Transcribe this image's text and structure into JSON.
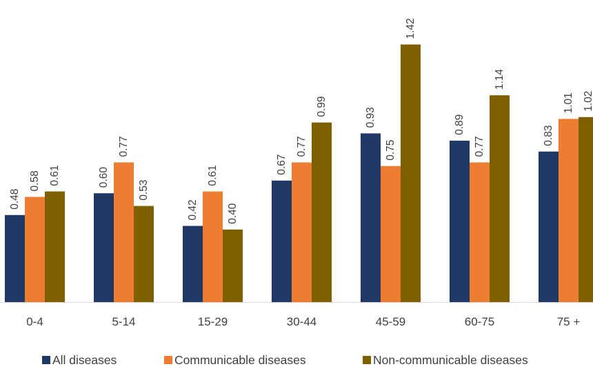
{
  "chart_data": {
    "type": "bar",
    "title": "",
    "xlabel": "",
    "ylabel": "",
    "categories": [
      "0-4",
      "5-14",
      "15-29",
      "30-44",
      "45-59",
      "60-75",
      "75 +"
    ],
    "ylim": [
      0,
      1.5
    ],
    "grid": false,
    "legend_position": "bottom",
    "series": [
      {
        "name": "All diseases",
        "color": "#203864",
        "values": [
          0.48,
          0.6,
          0.42,
          0.67,
          0.93,
          0.89,
          0.83
        ],
        "labels": [
          "0.48",
          "0.60",
          "0.42",
          "0.67",
          "0.93",
          "0.89",
          "0.83"
        ]
      },
      {
        "name": "Communicable diseases",
        "color": "#ED7D31",
        "values": [
          0.58,
          0.77,
          0.61,
          0.77,
          0.75,
          0.77,
          1.01
        ],
        "labels": [
          "0.58",
          "0.77",
          "0.61",
          "0.77",
          "0.75",
          "0.77",
          "1.01"
        ]
      },
      {
        "name": "Non-communicable diseases",
        "color": "#7F6000",
        "values": [
          0.61,
          0.53,
          0.4,
          0.99,
          1.42,
          1.14,
          1.02
        ],
        "labels": [
          "0.61",
          "0.53",
          "0.40",
          "0.99",
          "1.42",
          "1.14",
          "1.02"
        ]
      }
    ]
  }
}
